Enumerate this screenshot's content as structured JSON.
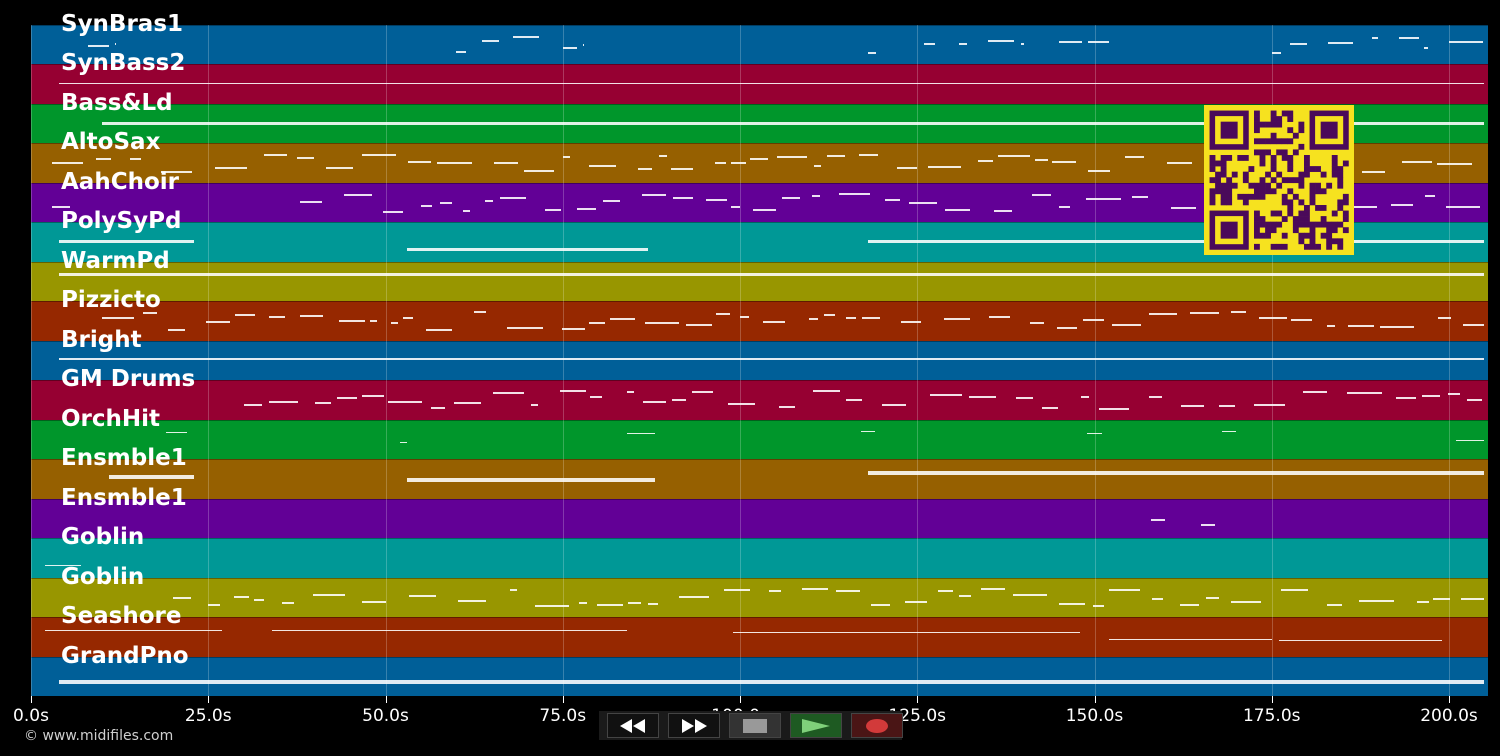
{
  "tracks": [
    {
      "name": "SynBras1",
      "color": "#005f98"
    },
    {
      "name": "SynBass2",
      "color": "#960032"
    },
    {
      "name": "Bass&Ld",
      "color": "#00962b"
    },
    {
      "name": "AltoSax",
      "color": "#966000"
    },
    {
      "name": "AahChoir",
      "color": "#620096"
    },
    {
      "name": "PolySyPd",
      "color": "#009896"
    },
    {
      "name": "WarmPd",
      "color": "#989600"
    },
    {
      "name": "Pizzicto",
      "color": "#962800"
    },
    {
      "name": "Bright",
      "color": "#005f98"
    },
    {
      "name": "GM Drums",
      "color": "#960032"
    },
    {
      "name": "OrchHit",
      "color": "#00962b"
    },
    {
      "name": "Ensmble1",
      "color": "#966000"
    },
    {
      "name": "Ensmble1",
      "color": "#620096"
    },
    {
      "name": "Goblin",
      "color": "#009896"
    },
    {
      "name": "Goblin",
      "color": "#989600"
    },
    {
      "name": "Seashore",
      "color": "#962800"
    },
    {
      "name": "GrandPno",
      "color": "#005f98"
    }
  ],
  "timeline": {
    "max_seconds": 205.5,
    "ticks": [
      "0.0s",
      "25.0s",
      "50.0s",
      "75.0s",
      "100.0s",
      "125.0s",
      "150.0s",
      "175.0s",
      "200.0s"
    ],
    "tick_values": [
      0,
      25,
      50,
      75,
      100,
      125,
      150,
      175,
      200
    ]
  },
  "copyright": "© www.midifiles.com",
  "transport": {
    "rewind": "rewind-icon",
    "fast_forward": "fast-forward-icon",
    "stop": "stop-icon",
    "play": "play-icon",
    "record": "record-icon"
  },
  "qr_colors": {
    "fg": "#4a0a5a",
    "bg": "#f6e21f"
  }
}
